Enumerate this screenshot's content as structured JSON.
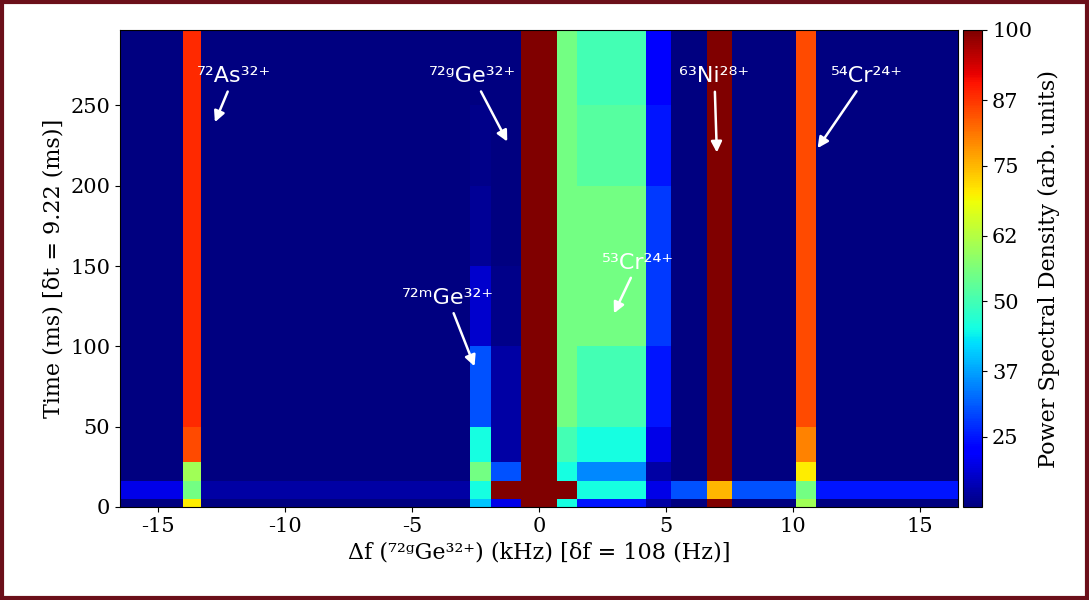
{
  "chart_data": {
    "type": "heatmap",
    "x_label": "Δf (⁷²ᵍGe³²⁺) (kHz) [δf = 108 (Hz)]",
    "y_label": "Time (ms) [δt = 9.22 (ms)]",
    "xlim": [
      -16.5,
      16.5
    ],
    "xticks": [
      -15,
      -10,
      -5,
      0,
      5,
      10,
      15
    ],
    "ylim": [
      0,
      297
    ],
    "yticks": [
      0,
      50,
      100,
      150,
      200,
      250
    ],
    "x_edges": [
      -16.5,
      -14.0,
      -13.3,
      -2.7,
      -1.9,
      -0.7,
      0.7,
      1.5,
      4.2,
      5.2,
      6.6,
      7.6,
      10.1,
      10.9,
      16.5
    ],
    "y_edges": [
      0,
      5,
      16,
      28,
      50,
      100,
      150,
      200,
      250,
      297
    ],
    "cells": [
      [
        12,
        70,
        12,
        40,
        20,
        100,
        45,
        25,
        15,
        12,
        100,
        12,
        60,
        12
      ],
      [
        20,
        55,
        15,
        45,
        100,
        100,
        100,
        45,
        20,
        30,
        75,
        30,
        55,
        25
      ],
      [
        12,
        60,
        12,
        55,
        30,
        100,
        45,
        35,
        15,
        12,
        100,
        12,
        70,
        12
      ],
      [
        12,
        85,
        12,
        45,
        15,
        100,
        50,
        45,
        20,
        12,
        100,
        12,
        80,
        12
      ],
      [
        12,
        88,
        12,
        30,
        15,
        100,
        55,
        50,
        25,
        12,
        100,
        12,
        85,
        12
      ],
      [
        12,
        88,
        12,
        18,
        13,
        100,
        55,
        55,
        28,
        12,
        100,
        12,
        85,
        12
      ],
      [
        12,
        88,
        12,
        14,
        12,
        100,
        55,
        55,
        28,
        12,
        100,
        12,
        85,
        12
      ],
      [
        12,
        88,
        12,
        13,
        12,
        100,
        55,
        52,
        25,
        12,
        100,
        12,
        85,
        12
      ],
      [
        12,
        88,
        12,
        12,
        12,
        100,
        55,
        50,
        22,
        12,
        100,
        12,
        85,
        12
      ]
    ],
    "colorbar": {
      "label": "Power Spectral Density (arb. units)",
      "range": [
        12,
        100
      ],
      "ticks": [
        25,
        37,
        50,
        62,
        75,
        87,
        100
      ]
    },
    "annotations": [
      {
        "text": "⁷²As³²⁺"
      },
      {
        "text": "⁷²ᵍGe³²⁺"
      },
      {
        "text": "⁶³Ni²⁸⁺"
      },
      {
        "text": "⁵⁴Cr²⁴⁺"
      },
      {
        "text": "⁵³Cr²⁴⁺"
      },
      {
        "text": "⁷²ᵐGe³²⁺"
      }
    ]
  }
}
